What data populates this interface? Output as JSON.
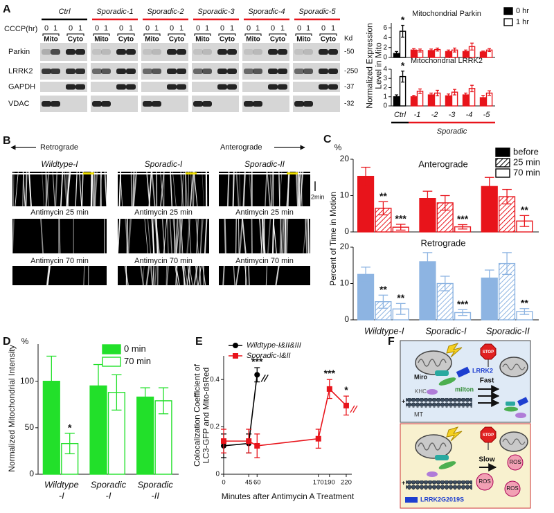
{
  "panel_labels": [
    "A",
    "B",
    "C",
    "D",
    "E",
    "F"
  ],
  "blot": {
    "groups": [
      "Ctrl",
      "Sporadic-1",
      "Sporadic-2",
      "Sporadic-3",
      "Sporadic-4",
      "Sporadic-5"
    ],
    "cccp_label": "CCCP(hr)",
    "cccp": [
      "0",
      "1"
    ],
    "fractions": [
      "Mito",
      "Cyto"
    ],
    "rows": [
      "Parkin",
      "LRRK2",
      "GAPDH",
      "VDAC"
    ],
    "kd_label": "Kd",
    "markers": [
      "-50",
      "-250",
      "-37",
      "-32"
    ]
  },
  "kymograph": {
    "directions": [
      "Retrograde",
      "Anterograde"
    ],
    "lines": [
      "Wildtype-I",
      "Sporadic-I",
      "Sporadic-II"
    ],
    "conditions": [
      "Antimycin 25 min",
      "Antimycin 70 min"
    ],
    "scale": "2min"
  },
  "diagram": {
    "stop": "STOP",
    "miro": "Miro",
    "lrrk2": "LRRK2",
    "milton": "milton",
    "khc": "KHC",
    "plus": "+",
    "mt": "MT",
    "fast": "Fast",
    "slow": "Slow",
    "ros": "ROS",
    "mutant": "LRRK2G2019S"
  },
  "chart_data": [
    {
      "type": "bar",
      "ylabel": [
        "Normalized Expression",
        "Level in Mito"
      ],
      "categories": [
        "Ctrl",
        "-1",
        "-2",
        "-3",
        "-4",
        "-5"
      ],
      "category_group": "Sporadic",
      "colors": [
        "#000000",
        "#e8141b",
        "#e8141b",
        "#e8141b",
        "#e8141b",
        "#e8141b"
      ],
      "series": [
        {
          "name": "0 hr",
          "color": "#000000",
          "style": "solid"
        },
        {
          "name": "1 hr",
          "color": "#000000",
          "style": "outline"
        }
      ],
      "panels": [
        {
          "title": "Mitochondrial Parkin",
          "ylim": [
            0,
            7
          ],
          "yticks": [
            0,
            2,
            4,
            6
          ],
          "values": [
            [
              0.8,
              1.5,
              1.4,
              1.2,
              1.2,
              1.1
            ],
            [
              5.3,
              1.4,
              1.6,
              1.5,
              2.2,
              1.5
            ]
          ],
          "errors": [
            [
              0.4,
              0.3,
              0.3,
              0.3,
              0.3,
              0.2
            ],
            [
              1.2,
              0.3,
              0.3,
              0.4,
              0.7,
              0.3
            ]
          ],
          "significance": [
            [
              null,
              null,
              null,
              null,
              null,
              null
            ],
            [
              "*",
              null,
              null,
              null,
              null,
              null
            ]
          ]
        },
        {
          "title": "Mitochondrial LRRK2",
          "ylim": [
            0,
            4
          ],
          "yticks": [
            0,
            1,
            2,
            3,
            4
          ],
          "values": [
            [
              1.0,
              1.0,
              1.2,
              1.1,
              1.2,
              0.9
            ],
            [
              3.2,
              1.6,
              1.4,
              1.5,
              1.9,
              1.4
            ]
          ],
          "errors": [
            [
              0.2,
              0.15,
              0.2,
              0.2,
              0.2,
              0.25
            ],
            [
              0.6,
              0.25,
              0.3,
              0.3,
              0.35,
              0.25
            ]
          ],
          "significance": [
            [
              null,
              null,
              null,
              null,
              null,
              null
            ],
            [
              "*",
              null,
              null,
              null,
              null,
              null
            ]
          ]
        }
      ]
    },
    {
      "type": "bar",
      "unit": "%",
      "ylabel": [
        "Percent of Time in Motion"
      ],
      "categories": [
        "Wildtype-I",
        "Sporadic-I",
        "Sporadic-II"
      ],
      "series": [
        {
          "name": "before",
          "color": "#000000",
          "style": "solid"
        },
        {
          "name": "25 min",
          "color": "#000000",
          "style": "hatched"
        },
        {
          "name": "70 min",
          "color": "#000000",
          "style": "outline"
        }
      ],
      "panels": [
        {
          "title": "Anterograde",
          "color": "#e8141b",
          "ylim": [
            0,
            20
          ],
          "yticks": [
            0,
            10,
            20
          ],
          "values": [
            [
              15.3,
              9.2,
              12.5
            ],
            [
              6.5,
              8.0,
              9.7
            ],
            [
              1.3,
              1.4,
              3.0
            ]
          ],
          "errors": [
            [
              2.5,
              2.0,
              2.5
            ],
            [
              1.8,
              2.0,
              2.0
            ],
            [
              0.8,
              0.6,
              1.5
            ]
          ],
          "significance": [
            [
              null,
              null,
              null
            ],
            [
              "**",
              null,
              null
            ],
            [
              "***",
              "***",
              "**"
            ]
          ]
        },
        {
          "title": "Retrograde",
          "color": "#8db4e2",
          "ylim": [
            0,
            20
          ],
          "yticks": [
            0,
            10,
            20
          ],
          "values": [
            [
              12.5,
              16,
              11.5
            ],
            [
              5.0,
              10,
              15.5
            ],
            [
              3.0,
              2.0,
              2.3
            ]
          ],
          "errors": [
            [
              2.0,
              2.5,
              2.2
            ],
            [
              1.8,
              2.0,
              3.0
            ],
            [
              1.5,
              0.8,
              0.8
            ]
          ],
          "significance": [
            [
              null,
              null,
              null
            ],
            [
              "**",
              null,
              null
            ],
            [
              "**",
              "***",
              "**"
            ]
          ]
        }
      ]
    },
    {
      "type": "bar",
      "unit": "%",
      "ylabel": [
        "Normalized Mitochondrial Intensity"
      ],
      "categories": [
        [
          "Wildtype",
          "-I"
        ],
        [
          "Sporadic",
          "-I"
        ],
        [
          "Sporadic",
          "-II"
        ]
      ],
      "ylim": [
        0,
        140
      ],
      "yticks": [
        0,
        50,
        100
      ],
      "series": [
        {
          "name": "0 min",
          "color": "#22e02a",
          "style": "solid",
          "values": [
            100,
            95,
            83
          ],
          "errors": [
            27,
            23,
            10
          ]
        },
        {
          "name": "70 min",
          "color": "#22e02a",
          "style": "outline",
          "values": [
            33,
            88,
            79
          ],
          "errors": [
            11,
            19,
            14
          ],
          "significance": [
            "*",
            null,
            null
          ]
        }
      ]
    },
    {
      "type": "line",
      "ylabel": [
        "Colocalization Coefficient of",
        "LC3-GFP and Mito-dsRed"
      ],
      "xlabel": "Minutes after Antimycin A Treatment",
      "xlim": [
        0,
        230
      ],
      "ylim": [
        0,
        0.5
      ],
      "xticks": [
        0,
        45,
        60,
        170,
        190,
        220
      ],
      "yticks": [
        0,
        0.2,
        0.4
      ],
      "series": [
        {
          "name": "Wildtype-I&II&III",
          "color": "#000000",
          "marker": "circle",
          "x": [
            0,
            45,
            60
          ],
          "values": [
            0.12,
            0.13,
            0.42
          ],
          "errors": [
            0.05,
            0.04,
            0.03
          ],
          "significance": [
            null,
            null,
            "***"
          ]
        },
        {
          "name": "Sporadic-I&II",
          "color": "#e8141b",
          "marker": "square",
          "x": [
            0,
            45,
            60,
            170,
            190,
            220
          ],
          "values": [
            0.14,
            0.14,
            0.12,
            0.15,
            0.36,
            0.29
          ],
          "errors": [
            0.05,
            0.05,
            0.05,
            0.04,
            0.04,
            0.04
          ],
          "significance": [
            null,
            null,
            null,
            null,
            "***",
            "*"
          ]
        }
      ]
    }
  ]
}
